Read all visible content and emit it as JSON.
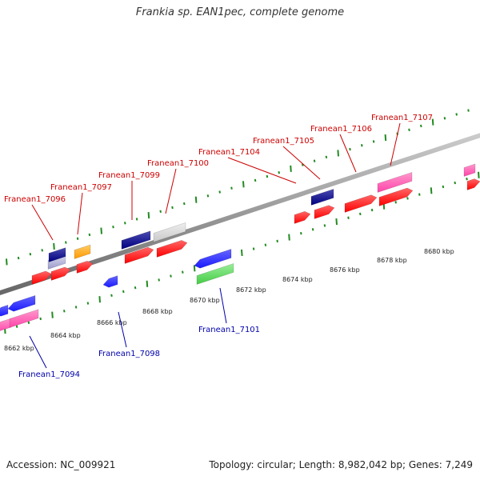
{
  "title": "Frankia sp. EAN1pec, complete genome",
  "footer": {
    "accession": "Accession: NC_009921",
    "topology": "Topology: circular; Length: 8,982,042 bp; Genes: 7,249"
  },
  "colors": {
    "forward_label": "#cc0000",
    "reverse_label": "#0000aa",
    "tick": "#228b22",
    "backbone": "#888888",
    "red": "#ff0000",
    "blue": "#1a1aff",
    "navy": "#000080",
    "magenta": "#ff44aa",
    "orange": "#ff9900",
    "grey": "#c8c8c8",
    "green": "#44cc44",
    "lavender": "#9999cc"
  },
  "scale_labels": [
    "8662 kbp",
    "8664 kbp",
    "8666 kbp",
    "8668 kbp",
    "8670 kbp",
    "8672 kbp",
    "8674 kbp",
    "8676 kbp",
    "8678 kbp",
    "8680 kbp"
  ],
  "forward_labels": [
    "Franean1_7096",
    "Franean1_7097",
    "Franean1_7099",
    "Franean1_7100",
    "Franean1_7104",
    "Franean1_7105",
    "Franean1_7106",
    "Franean1_7107"
  ],
  "reverse_labels": [
    "Franean1_7094",
    "Franean1_7098",
    "Franean1_7101"
  ]
}
